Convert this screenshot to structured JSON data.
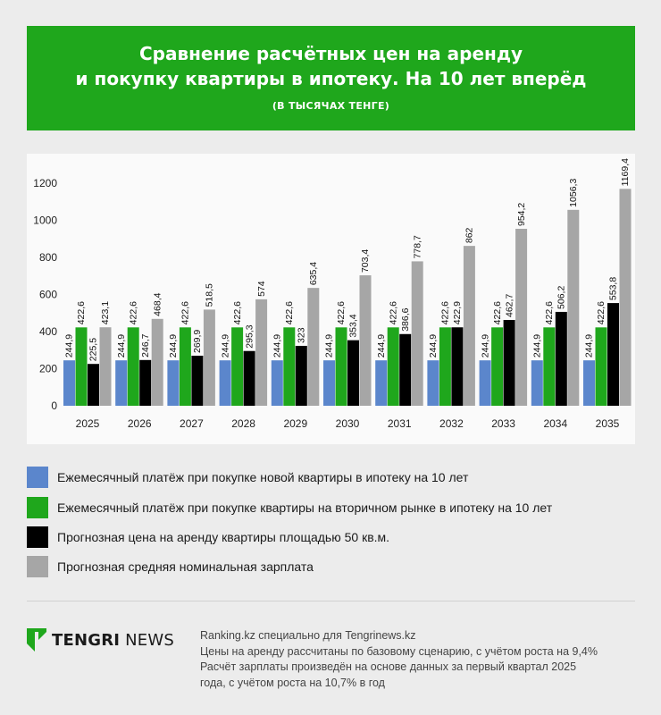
{
  "header": {
    "title_line1": "Сравнение расчётных цен на аренду",
    "title_line2": "и покупку квартиры в ипотеку. На 10 лет вперёд",
    "subtitle": "(В ТЫСЯЧАХ ТЕНГЕ)"
  },
  "colors": {
    "header_bg": "#1fa71c",
    "series": [
      "#5b86cc",
      "#1fa71c",
      "#000000",
      "#a6a6a6"
    ]
  },
  "chart_data": {
    "type": "bar",
    "categories": [
      "2025",
      "2026",
      "2027",
      "2028",
      "2029",
      "2030",
      "2031",
      "2032",
      "2033",
      "2034",
      "2035"
    ],
    "ylim": [
      0,
      1200
    ],
    "yticks": [
      0,
      200,
      400,
      600,
      800,
      1000,
      1200
    ],
    "grid": false,
    "legend_position": "bottom",
    "series": [
      {
        "name": "Ежемесячный платёж при покупке новой квартиры в ипотеку на 10 лет",
        "color": "#5b86cc",
        "values": [
          244.9,
          244.9,
          244.9,
          244.9,
          244.9,
          244.9,
          244.9,
          244.9,
          244.9,
          244.9,
          244.9
        ],
        "labels": [
          "244,9",
          "244,9",
          "244,9",
          "244,9",
          "244,9",
          "244,9",
          "244,9",
          "244,9",
          "244,9",
          "244,9",
          "244,9"
        ]
      },
      {
        "name": "Ежемесячный платёж при покупке квартиры на вторичном рынке в ипотеку на 10 лет",
        "color": "#1fa71c",
        "values": [
          422.6,
          422.6,
          422.6,
          422.6,
          422.6,
          422.6,
          422.6,
          422.6,
          422.6,
          422.6,
          422.6
        ],
        "labels": [
          "422,6",
          "422,6",
          "422,6",
          "422,6",
          "422,6",
          "422,6",
          "422,6",
          "422,6",
          "422,6",
          "422,6",
          "422,6"
        ]
      },
      {
        "name": "Прогнозная цена на аренду квартиры площадью 50 кв.м.",
        "color": "#000000",
        "values": [
          225.5,
          246.7,
          269.9,
          295.3,
          323,
          353.4,
          386.6,
          422.9,
          462.7,
          506.2,
          553.8
        ],
        "labels": [
          "225,5",
          "246,7",
          "269,9",
          "295,3",
          "323",
          "353,4",
          "386,6",
          "422,9",
          "462,7",
          "506,2",
          "553,8"
        ]
      },
      {
        "name": "Прогнозная средняя номинальная зарплата",
        "color": "#a6a6a6",
        "values": [
          423.1,
          468.4,
          518.5,
          574,
          635.4,
          703.4,
          778.7,
          862,
          954.2,
          1056.3,
          1169.4
        ],
        "labels": [
          "423,1",
          "468,4",
          "518,5",
          "574",
          "635,4",
          "703,4",
          "778,7",
          "862",
          "954,2",
          "1056,3",
          "1169,4"
        ]
      }
    ]
  },
  "footer": {
    "logo_word1": "TENGRI",
    "logo_word2": "NEWS",
    "notes": [
      "Ranking.kz специально для Tengrinews.kz",
      "Цены на аренду рассчитаны по базовому сценарию, с учётом роста на 9,4%",
      "Расчёт зарплаты произведён на основе данных за первый квартал 2025",
      "года, с учётом роста на 10,7% в год"
    ]
  }
}
